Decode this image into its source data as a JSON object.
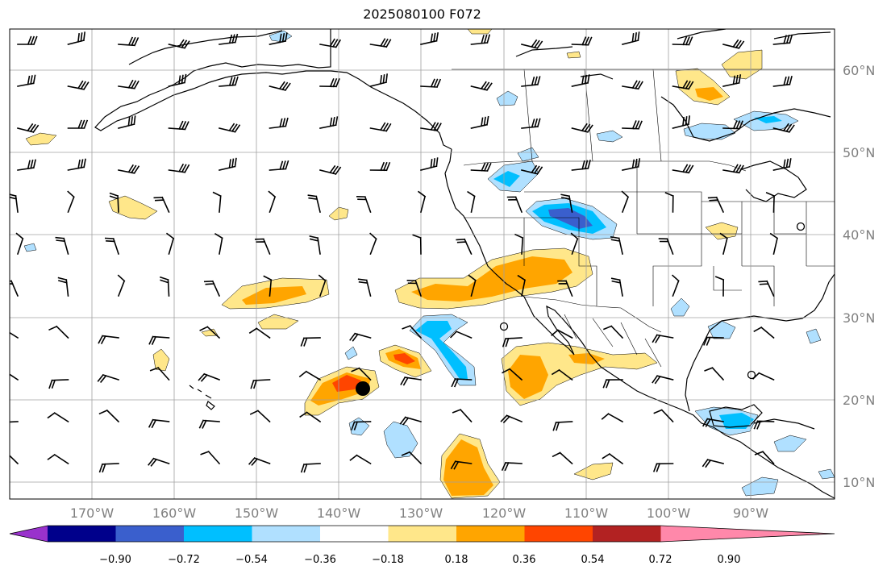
{
  "title": "2025080100 F072",
  "map": {
    "lat_labels": [
      "60°N",
      "50°N",
      "40°N",
      "30°N",
      "20°N",
      "10°N"
    ],
    "lon_labels": [
      "170°W",
      "160°W",
      "150°W",
      "140°W",
      "130°W",
      "120°W",
      "110°W",
      "100°W",
      "90°W"
    ],
    "gridlines": true,
    "colors": {
      "coast": "#000000",
      "grid": "#a0a0a0"
    }
  },
  "colorbar": {
    "tick_labels": [
      "−0.90",
      "−0.72",
      "−0.54",
      "−0.36",
      "−0.18",
      "0.18",
      "0.36",
      "0.54",
      "0.72",
      "0.90"
    ],
    "colors": [
      "#9932cc",
      "#00008b",
      "#3a5fcd",
      "#00bfff",
      "#b0e0ff",
      "#ffffff",
      "#ffe78a",
      "#ffa500",
      "#ff4500",
      "#b22222",
      "#ff88aa"
    ],
    "extend": "both"
  }
}
